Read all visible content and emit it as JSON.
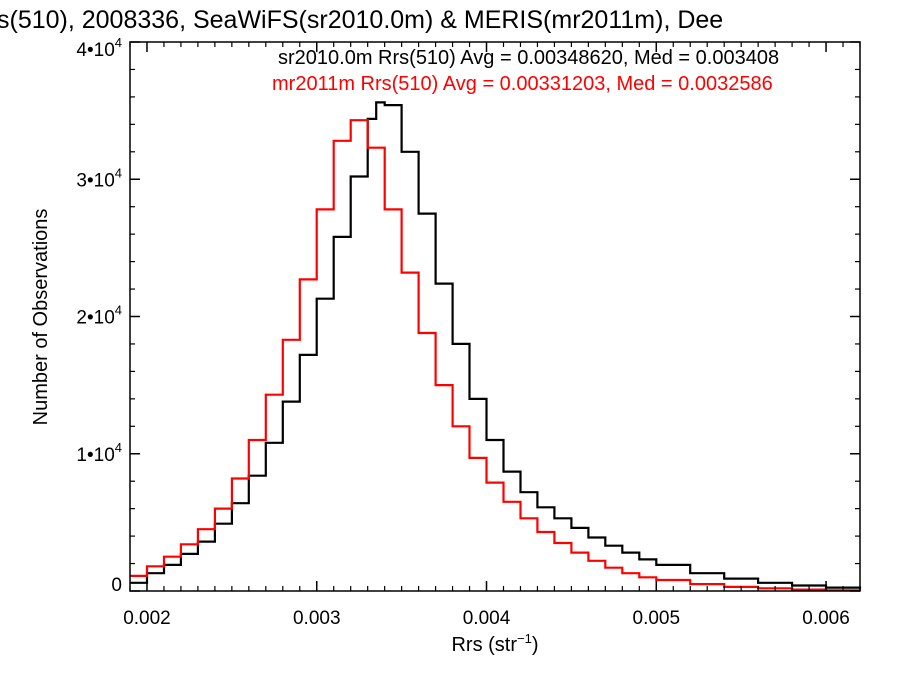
{
  "chart_data": {
    "type": "line",
    "step": true,
    "title": "s(510), 2008336, SeaWiFS(sr2010.0m) & MERIS(mr2011m), Dee",
    "xlabel": "Rrs (str⁻¹)",
    "ylabel": "Number of Observations",
    "xlim": [
      0.0019,
      0.0062
    ],
    "ylim": [
      0,
      40000
    ],
    "x_ticks": [
      {
        "value": 0.002,
        "label": "0.002"
      },
      {
        "value": 0.003,
        "label": "0.003"
      },
      {
        "value": 0.004,
        "label": "0.004"
      },
      {
        "value": 0.005,
        "label": "0.005"
      },
      {
        "value": 0.006,
        "label": "0.006"
      }
    ],
    "y_ticks": [
      {
        "value": 0,
        "mantissa": "0",
        "exponent": ""
      },
      {
        "value": 10000,
        "mantissa": "1•10",
        "exponent": "4"
      },
      {
        "value": 20000,
        "mantissa": "2•10",
        "exponent": "4"
      },
      {
        "value": 30000,
        "mantissa": "3•10",
        "exponent": "4"
      },
      {
        "value": 40000,
        "mantissa": "4•10",
        "exponent": "4"
      }
    ],
    "legend_position": "top-right",
    "series": [
      {
        "name": "sr2010.0m",
        "legend_text": "sr2010.0m Rrs(510) Avg = 0.00348620, Med = 0.003408",
        "color": "#000000",
        "x": [
          0.0019,
          0.002,
          0.0021,
          0.0022,
          0.0023,
          0.0024,
          0.0025,
          0.0026,
          0.0027,
          0.0028,
          0.0029,
          0.003,
          0.0031,
          0.0032,
          0.0033,
          0.00335,
          0.0034,
          0.0035,
          0.0036,
          0.0037,
          0.0038,
          0.0039,
          0.004,
          0.0041,
          0.0042,
          0.0043,
          0.0044,
          0.0045,
          0.0046,
          0.0047,
          0.0048,
          0.0049,
          0.005,
          0.0052,
          0.0054,
          0.0056,
          0.0058,
          0.006,
          0.0062
        ],
        "y": [
          600,
          1300,
          1900,
          2700,
          3600,
          4900,
          6400,
          8400,
          10800,
          13800,
          17200,
          21300,
          25800,
          30200,
          34400,
          35600,
          35400,
          32000,
          27500,
          22400,
          18000,
          14000,
          11000,
          8700,
          7200,
          6100,
          5300,
          4600,
          3900,
          3300,
          2800,
          2300,
          1900,
          1300,
          900,
          600,
          400,
          250,
          150
        ]
      },
      {
        "name": "mr2011m",
        "legend_text": "mr2011m Rrs(510) Avg = 0.00331203, Med = 0.0032586",
        "color": "#ff0000",
        "x": [
          0.0019,
          0.002,
          0.0021,
          0.0022,
          0.0023,
          0.0024,
          0.0025,
          0.0026,
          0.0027,
          0.0028,
          0.0029,
          0.003,
          0.0031,
          0.0032,
          0.0033,
          0.0034,
          0.0035,
          0.0036,
          0.0037,
          0.0038,
          0.0039,
          0.004,
          0.0041,
          0.0042,
          0.0043,
          0.0044,
          0.0045,
          0.0046,
          0.0047,
          0.0048,
          0.0049,
          0.005,
          0.0052,
          0.0054,
          0.0056,
          0.0058,
          0.006,
          0.0062
        ],
        "y": [
          1100,
          1800,
          2500,
          3400,
          4500,
          6000,
          8200,
          11000,
          14300,
          18300,
          22700,
          27800,
          32800,
          34300,
          32300,
          27800,
          23200,
          18800,
          15000,
          12000,
          9700,
          7900,
          6500,
          5300,
          4300,
          3500,
          2800,
          2200,
          1700,
          1300,
          1000,
          800,
          500,
          300,
          200,
          100,
          50,
          30
        ]
      }
    ]
  }
}
